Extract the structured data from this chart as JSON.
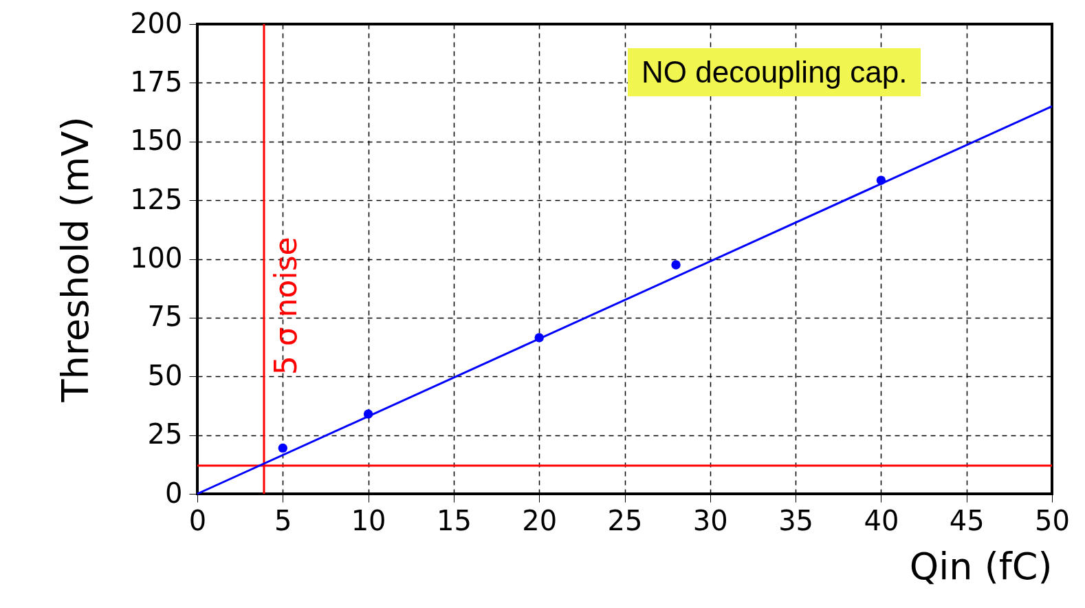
{
  "chart_data": {
    "type": "scatter",
    "xlabel": "Qin (fC)",
    "ylabel": "Threshold (mV)",
    "xlim": [
      0,
      50
    ],
    "ylim": [
      0,
      200
    ],
    "xticks": [
      0,
      5,
      10,
      15,
      20,
      25,
      30,
      35,
      40,
      45,
      50
    ],
    "yticks": [
      0,
      25,
      50,
      75,
      100,
      125,
      150,
      175,
      200
    ],
    "grid": true,
    "marker": "circle",
    "series": [
      {
        "type": "scatter",
        "color": "#0000ff",
        "x": [
          5,
          10,
          20,
          28,
          40
        ],
        "values": [
          19.5,
          34,
          66.5,
          97.5,
          133.5
        ]
      },
      {
        "type": "line",
        "color": "#0000ff",
        "marker": "none",
        "line_style": "solid",
        "x": [
          0,
          50
        ],
        "values": [
          0,
          165
        ]
      }
    ],
    "ref_lines": [
      {
        "axis": "x",
        "value": 3.9,
        "label": "5 σ noise",
        "color": "#ff0000"
      },
      {
        "axis": "y",
        "value": 12,
        "color": "#ff0000"
      }
    ],
    "annotations": [
      "NO decoupling cap."
    ]
  }
}
